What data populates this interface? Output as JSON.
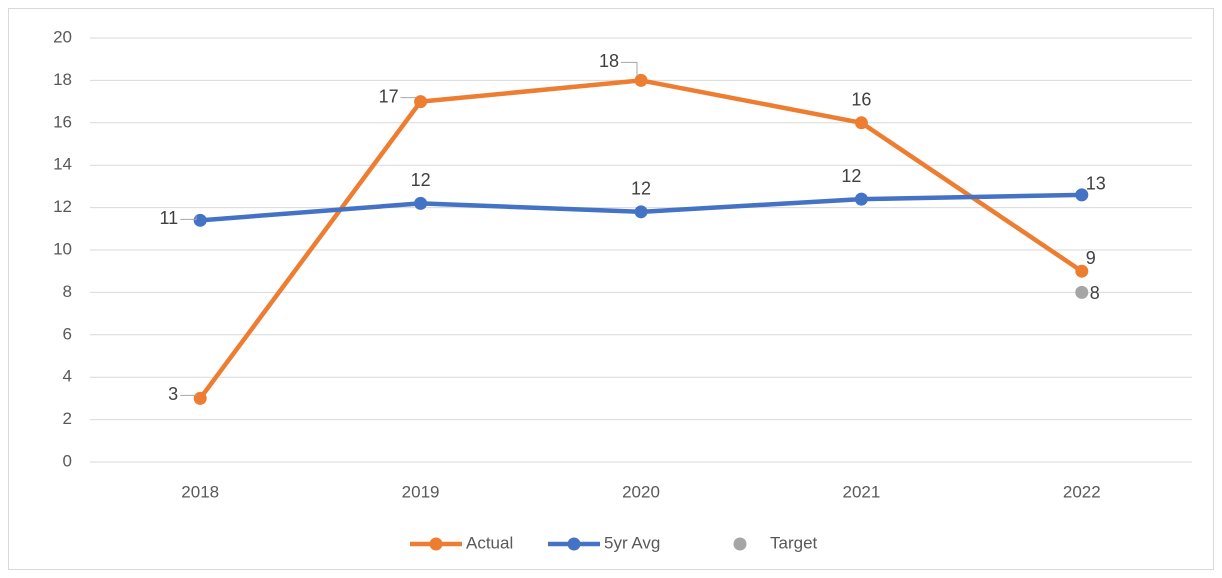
{
  "chart_data": {
    "type": "line",
    "categories": [
      "2018",
      "2019",
      "2020",
      "2021",
      "2022"
    ],
    "series": [
      {
        "name": "Actual",
        "color": "#ed7d31",
        "values": [
          3,
          17,
          18,
          16,
          9
        ]
      },
      {
        "name": "5yr Avg",
        "color": "#4472c4",
        "values": [
          11.4,
          12.2,
          11.8,
          12.4,
          12.6
        ],
        "value_labels": [
          "11",
          "12",
          "12",
          "12",
          "13"
        ]
      },
      {
        "name": "Target",
        "color": "#a5a5a5",
        "line": false,
        "values": [
          null,
          null,
          null,
          null,
          8
        ]
      }
    ],
    "ylim": [
      0,
      20
    ],
    "yticks": [
      0,
      2,
      4,
      6,
      8,
      10,
      12,
      14,
      16,
      18,
      20
    ],
    "grid": true,
    "legend": "bottom"
  }
}
